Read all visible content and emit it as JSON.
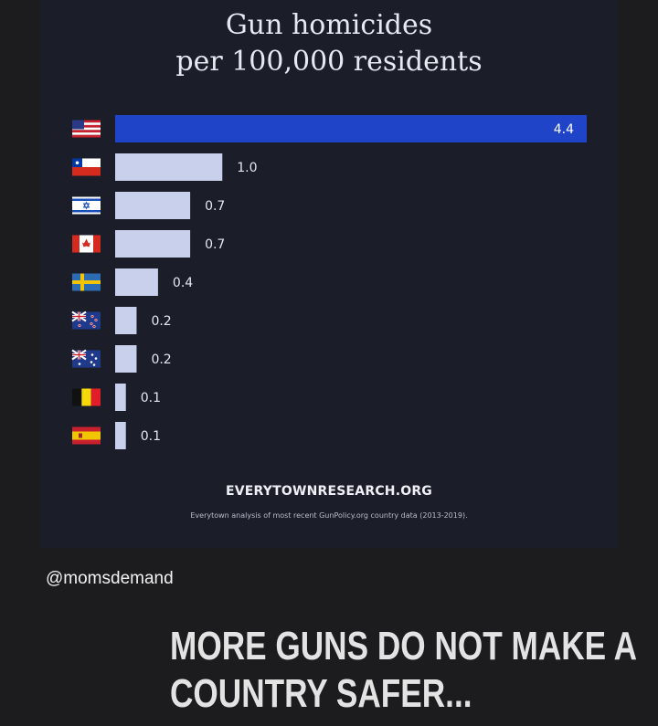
{
  "chart_data": {
    "type": "bar",
    "orientation": "horizontal",
    "title_lines": [
      "Gun homicides",
      "per 100,000 residents"
    ],
    "categories": [
      "United States",
      "Chile",
      "Israel",
      "Canada",
      "Sweden",
      "New Zealand",
      "Australia",
      "Belgium",
      "Spain"
    ],
    "values": [
      4.4,
      1.0,
      0.7,
      0.7,
      0.4,
      0.2,
      0.2,
      0.1,
      0.1
    ],
    "value_labels": [
      "4.4",
      "1.0",
      "0.7",
      "0.7",
      "0.4",
      "0.2",
      "0.2",
      "0.1",
      "0.1"
    ],
    "highlight_color": "#1f44c8",
    "bar_color": "#c9d0ec",
    "xlim": [
      0,
      4.4
    ]
  },
  "source": "EVERYTOWNRESEARCH.ORG",
  "note": "Everytown analysis of most recent GunPolicy.org country data (2013-2019).",
  "handle": "@momsdemand",
  "caption_lines": [
    "MORE GUNS DO NOT MAKE A",
    "COUNTRY SAFER..."
  ]
}
